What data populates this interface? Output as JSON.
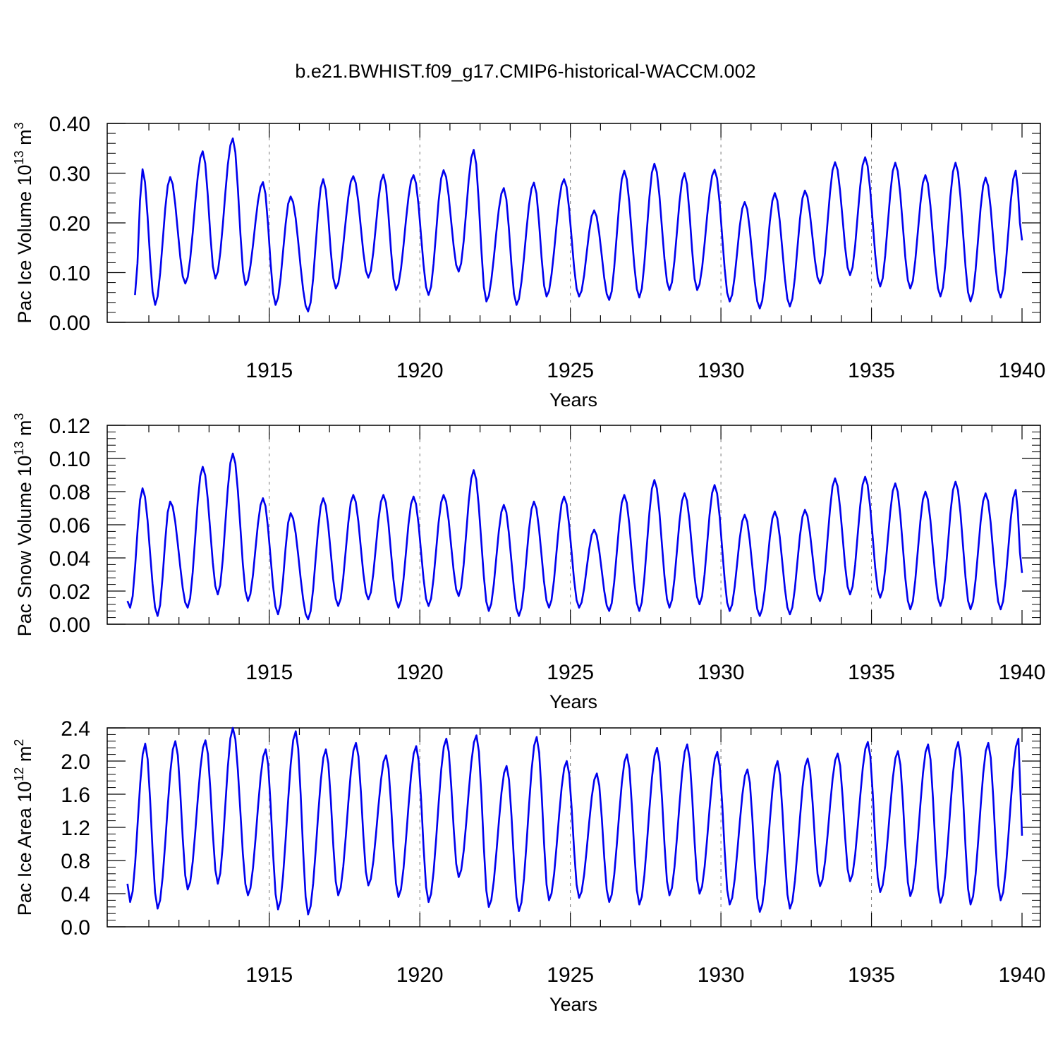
{
  "title": "b.e21.BWHIST.f09_g17.CMIP6-historical-WACCM.002",
  "chart_data": [
    {
      "type": "line",
      "ylabel": {
        "text": "Pac Ice Volume 10",
        "sup": "13",
        "unit": " m",
        "unit_sup": "3"
      },
      "xlabel": "Years",
      "xlim": [
        1910.25,
        1940
      ],
      "ylim": [
        0,
        0.4
      ],
      "yticks": [
        0.0,
        0.1,
        0.2,
        0.3,
        0.4
      ],
      "ytick_labels": [
        "0.00",
        "0.10",
        "0.20",
        "0.30",
        "0.40"
      ],
      "xticks": [
        1915,
        1920,
        1925,
        1930,
        1935,
        1940
      ],
      "xtick_labels": [
        "1915",
        "1920",
        "1925",
        "1930",
        "1935",
        "1940"
      ],
      "grid": "vertical dashed at major x ticks",
      "series": [
        {
          "color": "#0000ee",
          "start_year": 1910.29,
          "step_years": 0.0833,
          "min_points": [
            [
              1910.54,
              0.055
            ],
            [
              1911.21,
              0.035
            ],
            [
              1912.21,
              0.078
            ],
            [
              1913.21,
              0.088
            ],
            [
              1914.21,
              0.075
            ],
            [
              1915.21,
              0.035
            ],
            [
              1916.29,
              0.022
            ],
            [
              1917.21,
              0.068
            ],
            [
              1918.29,
              0.09
            ],
            [
              1919.21,
              0.065
            ],
            [
              1920.29,
              0.055
            ],
            [
              1921.29,
              0.102
            ],
            [
              1922.21,
              0.042
            ],
            [
              1923.21,
              0.035
            ],
            [
              1924.21,
              0.052
            ],
            [
              1925.29,
              0.052
            ],
            [
              1926.29,
              0.045
            ],
            [
              1927.29,
              0.05
            ],
            [
              1928.29,
              0.065
            ],
            [
              1929.21,
              0.065
            ],
            [
              1930.29,
              0.042
            ],
            [
              1931.29,
              0.028
            ],
            [
              1932.29,
              0.032
            ],
            [
              1933.29,
              0.078
            ],
            [
              1934.29,
              0.095
            ],
            [
              1935.29,
              0.072
            ],
            [
              1936.29,
              0.068
            ],
            [
              1937.29,
              0.052
            ],
            [
              1938.29,
              0.042
            ],
            [
              1939.29,
              0.05
            ]
          ],
          "max_points": [
            [
              1910.79,
              0.308
            ],
            [
              1911.71,
              0.292
            ],
            [
              1912.79,
              0.344
            ],
            [
              1913.79,
              0.37
            ],
            [
              1914.79,
              0.282
            ],
            [
              1915.71,
              0.253
            ],
            [
              1916.79,
              0.288
            ],
            [
              1917.79,
              0.294
            ],
            [
              1918.79,
              0.297
            ],
            [
              1919.79,
              0.296
            ],
            [
              1920.79,
              0.306
            ],
            [
              1921.79,
              0.347
            ],
            [
              1922.79,
              0.27
            ],
            [
              1923.79,
              0.281
            ],
            [
              1924.79,
              0.288
            ],
            [
              1925.79,
              0.225
            ],
            [
              1926.79,
              0.305
            ],
            [
              1927.79,
              0.319
            ],
            [
              1928.79,
              0.3
            ],
            [
              1929.79,
              0.307
            ],
            [
              1930.79,
              0.242
            ],
            [
              1931.79,
              0.26
            ],
            [
              1932.79,
              0.265
            ],
            [
              1933.79,
              0.322
            ],
            [
              1934.79,
              0.332
            ],
            [
              1935.79,
              0.321
            ],
            [
              1936.79,
              0.296
            ],
            [
              1937.79,
              0.321
            ],
            [
              1938.79,
              0.291
            ],
            [
              1939.79,
              0.305
            ]
          ],
          "end_value": 0.165
        }
      ]
    },
    {
      "type": "line",
      "ylabel": {
        "text": "Pac Snow Volume 10",
        "sup": "13",
        "unit": " m",
        "unit_sup": "3"
      },
      "xlabel": "Years",
      "xlim": [
        1910.25,
        1940
      ],
      "ylim": [
        0,
        0.12
      ],
      "yticks": [
        0.0,
        0.02,
        0.04,
        0.06,
        0.08,
        0.1,
        0.12
      ],
      "ytick_labels": [
        "0.00",
        "0.02",
        "0.04",
        "0.06",
        "0.08",
        "0.10",
        "0.12"
      ],
      "xticks": [
        1915,
        1920,
        1925,
        1930,
        1935,
        1940
      ],
      "xtick_labels": [
        "1915",
        "1920",
        "1925",
        "1930",
        "1935",
        "1940"
      ],
      "grid": "vertical dashed at major x ticks",
      "series": [
        {
          "color": "#0000ee",
          "start_value": 0.014,
          "min_points": [
            [
              1910.38,
              0.01
            ],
            [
              1911.29,
              0.005
            ],
            [
              1912.29,
              0.01
            ],
            [
              1913.29,
              0.018
            ],
            [
              1914.29,
              0.014
            ],
            [
              1915.29,
              0.006
            ],
            [
              1916.29,
              0.003
            ],
            [
              1917.29,
              0.011
            ],
            [
              1918.29,
              0.015
            ],
            [
              1919.29,
              0.01
            ],
            [
              1920.29,
              0.011
            ],
            [
              1921.29,
              0.017
            ],
            [
              1922.29,
              0.008
            ],
            [
              1923.29,
              0.005
            ],
            [
              1924.29,
              0.01
            ],
            [
              1925.29,
              0.01
            ],
            [
              1926.29,
              0.008
            ],
            [
              1927.29,
              0.008
            ],
            [
              1928.29,
              0.01
            ],
            [
              1929.29,
              0.012
            ],
            [
              1930.29,
              0.008
            ],
            [
              1931.29,
              0.005
            ],
            [
              1932.29,
              0.006
            ],
            [
              1933.29,
              0.014
            ],
            [
              1934.29,
              0.018
            ],
            [
              1935.29,
              0.016
            ],
            [
              1936.29,
              0.009
            ],
            [
              1937.29,
              0.011
            ],
            [
              1938.29,
              0.009
            ],
            [
              1939.29,
              0.009
            ]
          ],
          "max_points": [
            [
              1910.79,
              0.082
            ],
            [
              1911.71,
              0.074
            ],
            [
              1912.79,
              0.095
            ],
            [
              1913.79,
              0.103
            ],
            [
              1914.79,
              0.076
            ],
            [
              1915.71,
              0.067
            ],
            [
              1916.79,
              0.076
            ],
            [
              1917.79,
              0.078
            ],
            [
              1918.79,
              0.078
            ],
            [
              1919.79,
              0.077
            ],
            [
              1920.79,
              0.078
            ],
            [
              1921.79,
              0.093
            ],
            [
              1922.79,
              0.072
            ],
            [
              1923.79,
              0.074
            ],
            [
              1924.79,
              0.077
            ],
            [
              1925.79,
              0.057
            ],
            [
              1926.79,
              0.078
            ],
            [
              1927.79,
              0.087
            ],
            [
              1928.79,
              0.079
            ],
            [
              1929.79,
              0.084
            ],
            [
              1930.79,
              0.066
            ],
            [
              1931.79,
              0.068
            ],
            [
              1932.79,
              0.069
            ],
            [
              1933.79,
              0.088
            ],
            [
              1934.79,
              0.089
            ],
            [
              1935.79,
              0.085
            ],
            [
              1936.79,
              0.08
            ],
            [
              1937.79,
              0.086
            ],
            [
              1938.79,
              0.079
            ],
            [
              1939.79,
              0.081
            ]
          ],
          "end_value": 0.031
        }
      ]
    },
    {
      "type": "line",
      "ylabel": {
        "text": "Pac Ice Area 10",
        "sup": "12",
        "unit": " m",
        "unit_sup": "2"
      },
      "xlabel": "Years",
      "xlim": [
        1910.25,
        1940
      ],
      "ylim": [
        0,
        2.4
      ],
      "yticks": [
        0.0,
        0.4,
        0.8,
        1.2,
        1.6,
        2.0,
        2.4
      ],
      "ytick_labels": [
        "0.0",
        "0.4",
        "0.8",
        "1.2",
        "1.6",
        "2.0",
        "2.4"
      ],
      "xticks": [
        1915,
        1920,
        1925,
        1930,
        1935,
        1940
      ],
      "xtick_labels": [
        "1915",
        "1920",
        "1925",
        "1930",
        "1935",
        "1940"
      ],
      "grid": "vertical dashed at major x ticks",
      "series": [
        {
          "color": "#0000ee",
          "start_value": 0.52,
          "min_points": [
            [
              1910.38,
              0.3
            ],
            [
              1911.29,
              0.22
            ],
            [
              1912.29,
              0.45
            ],
            [
              1913.29,
              0.52
            ],
            [
              1914.29,
              0.38
            ],
            [
              1915.29,
              0.21
            ],
            [
              1916.29,
              0.15
            ],
            [
              1917.29,
              0.38
            ],
            [
              1918.29,
              0.5
            ],
            [
              1919.29,
              0.36
            ],
            [
              1920.29,
              0.3
            ],
            [
              1921.29,
              0.6
            ],
            [
              1922.29,
              0.24
            ],
            [
              1923.29,
              0.19
            ],
            [
              1924.29,
              0.32
            ],
            [
              1925.29,
              0.35
            ],
            [
              1926.29,
              0.3
            ],
            [
              1927.29,
              0.27
            ],
            [
              1928.29,
              0.38
            ],
            [
              1929.29,
              0.4
            ],
            [
              1930.29,
              0.27
            ],
            [
              1931.29,
              0.18
            ],
            [
              1932.29,
              0.22
            ],
            [
              1933.29,
              0.49
            ],
            [
              1934.29,
              0.55
            ],
            [
              1935.29,
              0.42
            ],
            [
              1936.29,
              0.37
            ],
            [
              1937.29,
              0.29
            ],
            [
              1938.29,
              0.27
            ],
            [
              1939.29,
              0.32
            ]
          ],
          "max_points": [
            [
              1910.88,
              2.21
            ],
            [
              1911.88,
              2.24
            ],
            [
              1912.88,
              2.25
            ],
            [
              1913.79,
              2.4
            ],
            [
              1914.88,
              2.14
            ],
            [
              1915.88,
              2.36
            ],
            [
              1916.88,
              2.14
            ],
            [
              1917.88,
              2.22
            ],
            [
              1918.88,
              2.07
            ],
            [
              1919.88,
              2.18
            ],
            [
              1920.88,
              2.27
            ],
            [
              1921.88,
              2.31
            ],
            [
              1922.88,
              1.94
            ],
            [
              1923.88,
              2.29
            ],
            [
              1924.88,
              2.0
            ],
            [
              1925.88,
              1.85
            ],
            [
              1926.88,
              2.08
            ],
            [
              1927.88,
              2.16
            ],
            [
              1928.88,
              2.2
            ],
            [
              1929.88,
              2.11
            ],
            [
              1930.88,
              1.9
            ],
            [
              1931.88,
              2.0
            ],
            [
              1932.88,
              2.03
            ],
            [
              1933.88,
              2.09
            ],
            [
              1934.88,
              2.23
            ],
            [
              1935.88,
              2.12
            ],
            [
              1936.88,
              2.2
            ],
            [
              1937.88,
              2.23
            ],
            [
              1938.88,
              2.22
            ],
            [
              1939.88,
              2.27
            ]
          ],
          "end_value": 1.1
        }
      ]
    }
  ]
}
